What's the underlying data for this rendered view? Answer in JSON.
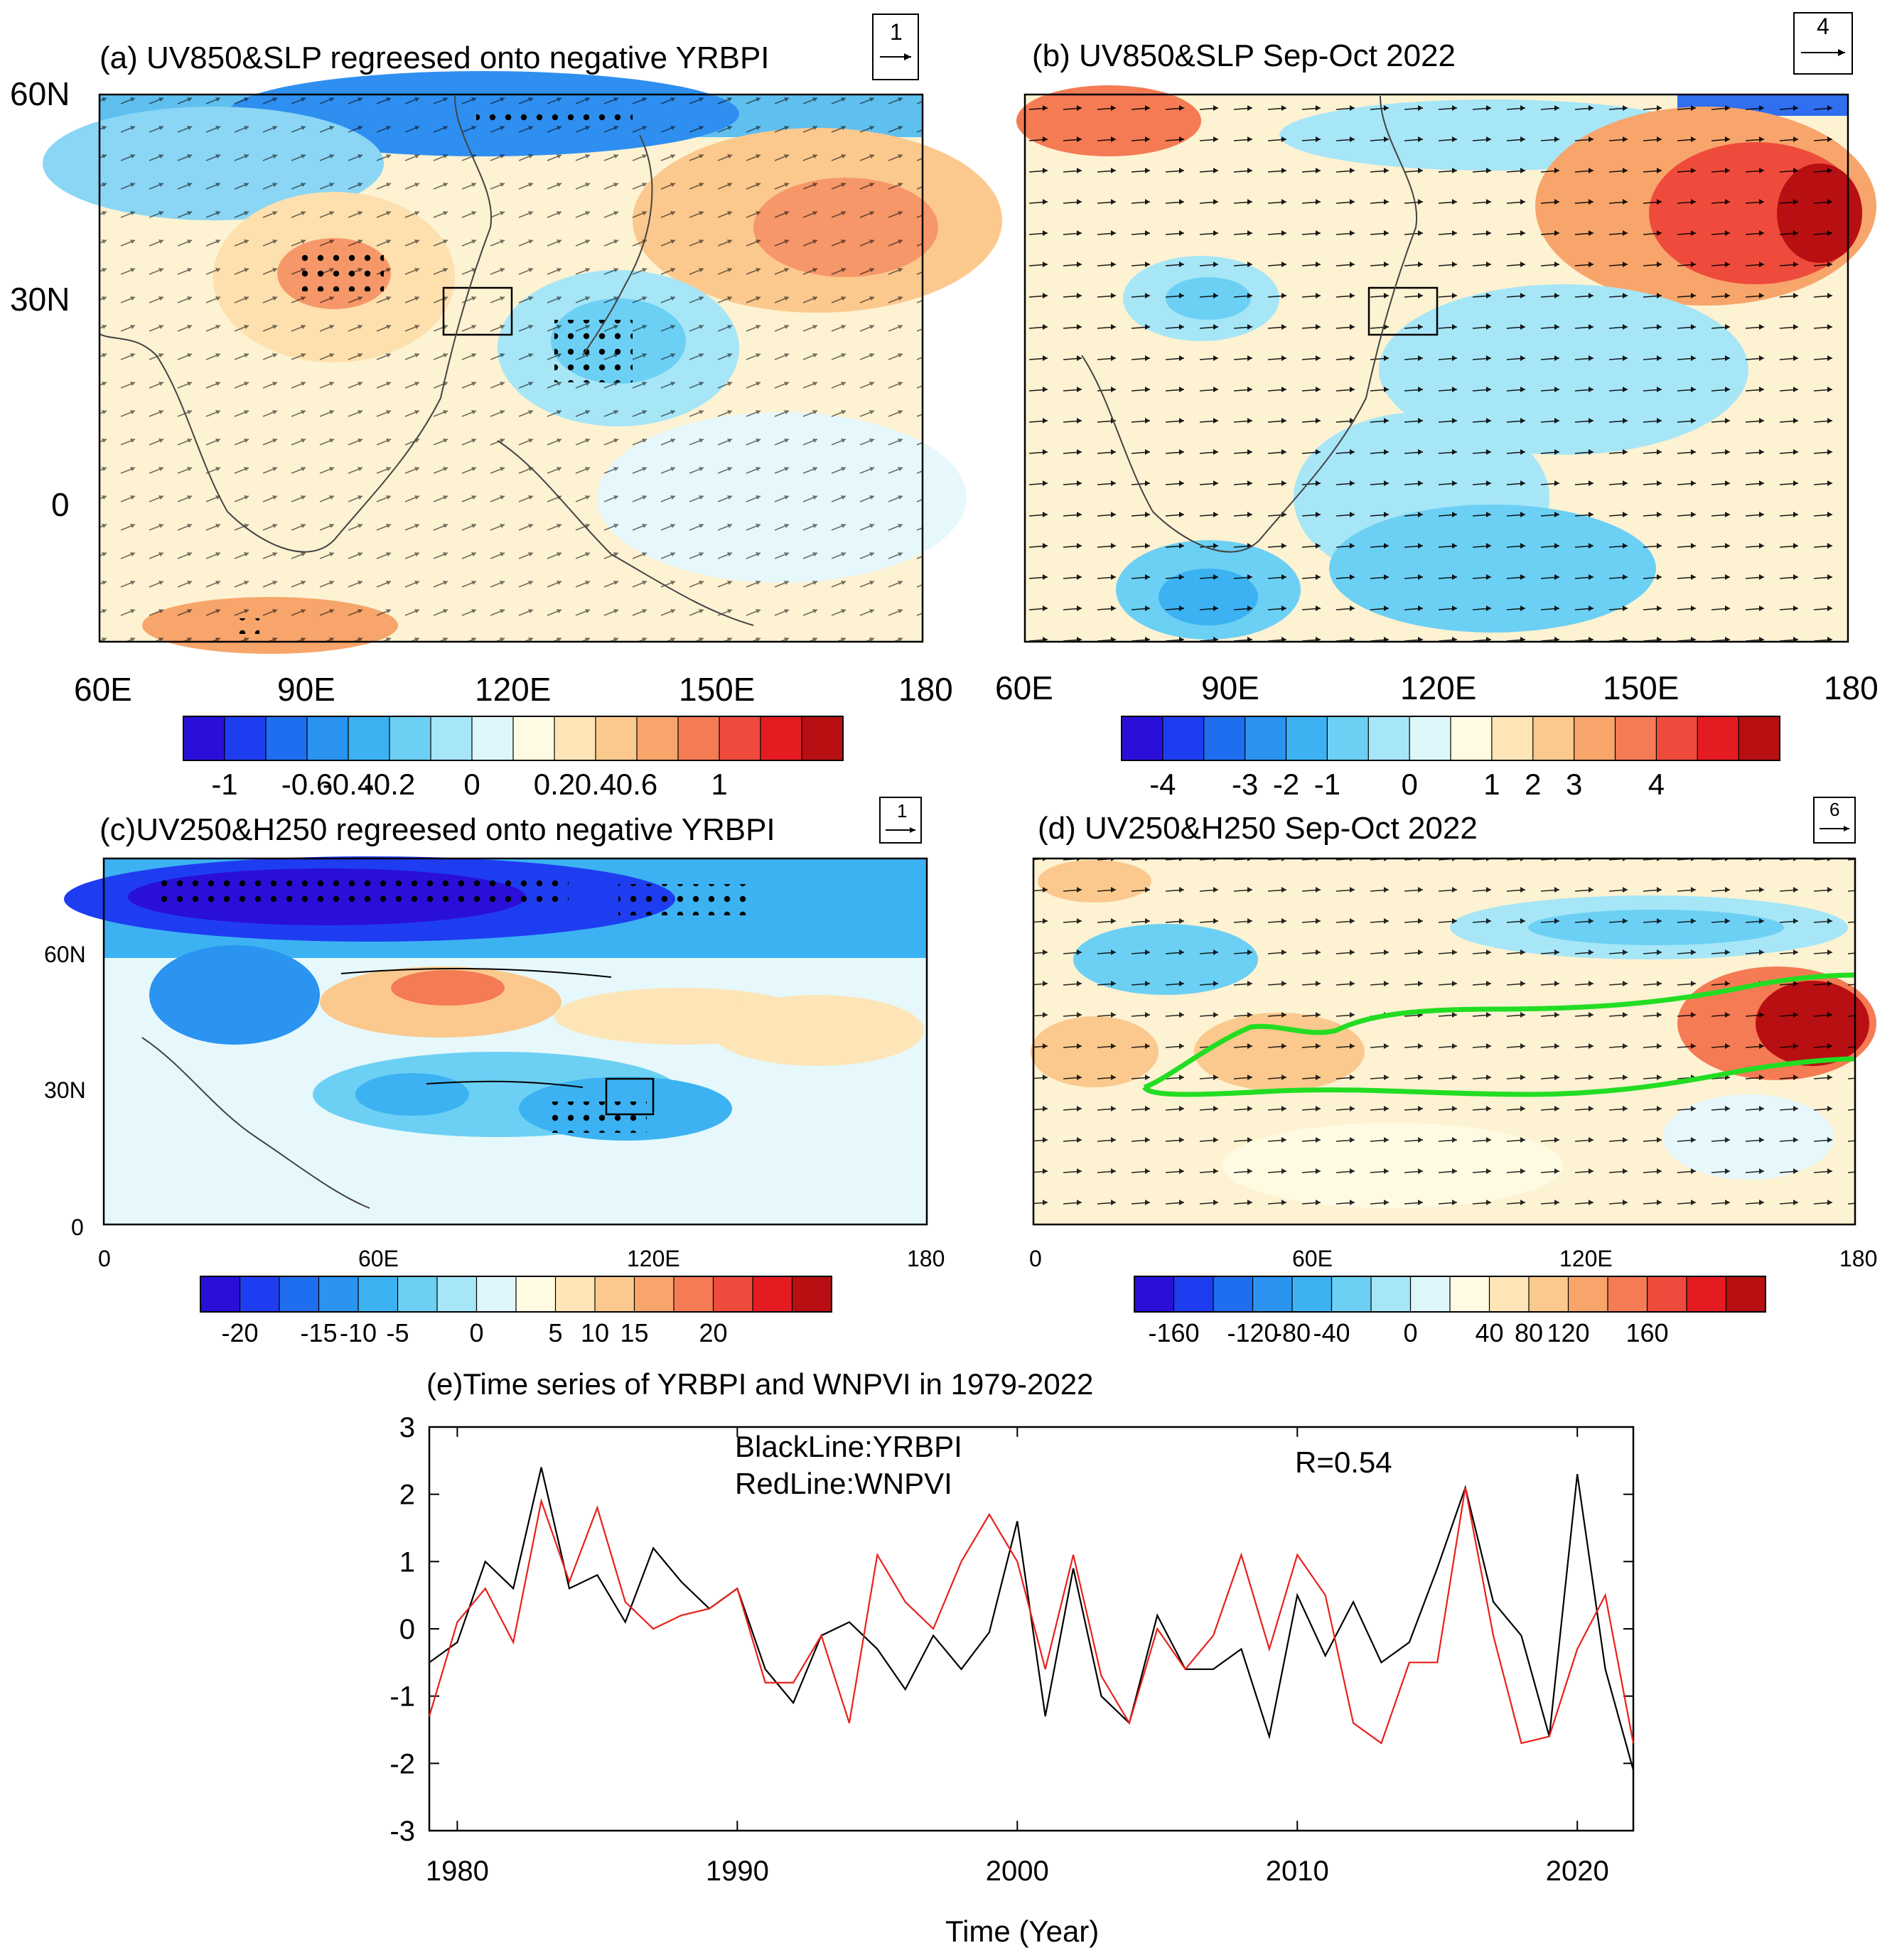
{
  "figure": {
    "panels": {
      "a": {
        "title": "(a) UV850&SLP regreesed onto negative YRBPI",
        "ref_vector": "1",
        "x_ticks": [
          "60E",
          "90E",
          "120E",
          "150E",
          "180"
        ],
        "y_ticks": [
          "60N",
          "30N",
          "0"
        ],
        "colorbar": [
          "-1",
          "-0.6",
          "-0.4",
          "-0.2",
          "0",
          "0.2",
          "0.4",
          "0.6",
          "1"
        ]
      },
      "b": {
        "title": "(b) UV850&SLP Sep-Oct 2022",
        "ref_vector": "4",
        "x_ticks": [
          "60E",
          "90E",
          "120E",
          "150E",
          "180"
        ],
        "colorbar": [
          "-4",
          "-3",
          "-2",
          "-1",
          "0",
          "1",
          "2",
          "3",
          "4"
        ]
      },
      "c": {
        "title": "(c)UV250&H250 regreesed onto negative YRBPI",
        "ref_vector": "1",
        "x_ticks": [
          "0",
          "60E",
          "120E",
          "180"
        ],
        "y_ticks": [
          "60N",
          "30N",
          "0"
        ],
        "colorbar": [
          "-20",
          "-15",
          "-10",
          "-5",
          "0",
          "5",
          "10",
          "15",
          "20"
        ]
      },
      "d": {
        "title": "(d) UV250&H250 Sep-Oct 2022",
        "ref_vector": "6",
        "x_ticks": [
          "0",
          "60E",
          "120E",
          "180"
        ],
        "colorbar": [
          "-160",
          "-120",
          "-80",
          "-40",
          "0",
          "40",
          "80",
          "120",
          "160"
        ]
      }
    },
    "colors": {
      "scale": [
        "#2a0fd8",
        "#1f3df0",
        "#1f6ef0",
        "#2a94f0",
        "#3cb2f2",
        "#6cd0f4",
        "#a6e6f7",
        "#ddf6fa",
        "#fffbe2",
        "#fde5b7",
        "#fbc98d",
        "#f7a56b",
        "#f47b54",
        "#ef4b3c",
        "#e41c22",
        "#b80f12"
      ],
      "black_line": "#000000",
      "red_line": "#e8201b",
      "jet_contour": "#22dd22",
      "dots": "#000000"
    }
  },
  "chart_data": {
    "type": "line",
    "title": "(e)Time series of YRBPI and WNPVI in 1979-2022",
    "xlabel": "Time (Year)",
    "ylabel": "",
    "xlim": [
      1979,
      2022
    ],
    "ylim": [
      -3,
      3
    ],
    "x_ticks": [
      1980,
      1990,
      2000,
      2010,
      2020
    ],
    "y_ticks": [
      3,
      2,
      1,
      0,
      -1,
      -2,
      -3
    ],
    "x": [
      1979,
      1980,
      1981,
      1982,
      1983,
      1984,
      1985,
      1986,
      1987,
      1988,
      1989,
      1990,
      1991,
      1992,
      1993,
      1994,
      1995,
      1996,
      1997,
      1998,
      1999,
      2000,
      2001,
      2002,
      2003,
      2004,
      2005,
      2006,
      2007,
      2008,
      2009,
      2010,
      2011,
      2012,
      2013,
      2014,
      2015,
      2016,
      2017,
      2018,
      2019,
      2020,
      2021,
      2022
    ],
    "legend": [
      "BlackLine:YRBPI",
      "RedLine:WNPVI"
    ],
    "annotation": "R=0.54",
    "series": [
      {
        "name": "YRBPI",
        "color": "#000000",
        "values": [
          -0.5,
          -0.2,
          1.0,
          0.6,
          2.4,
          0.6,
          0.8,
          0.1,
          1.2,
          0.7,
          0.3,
          0.6,
          -0.6,
          -1.1,
          -0.1,
          0.1,
          -0.3,
          -0.9,
          -0.1,
          -0.6,
          -0.05,
          1.6,
          -1.3,
          0.9,
          -1.0,
          -1.4,
          0.2,
          -0.6,
          -0.6,
          -0.3,
          -1.6,
          0.5,
          -0.4,
          0.4,
          -0.5,
          -0.2,
          0.9,
          2.1,
          0.4,
          -0.1,
          -1.6,
          2.3,
          -0.6,
          -2.1
        ]
      },
      {
        "name": "WNPVI",
        "color": "#e8201b",
        "values": [
          -1.3,
          0.1,
          0.6,
          -0.2,
          1.9,
          0.7,
          1.8,
          0.4,
          0.0,
          0.2,
          0.3,
          0.6,
          -0.8,
          -0.8,
          -0.1,
          -1.4,
          1.1,
          0.4,
          0.0,
          1.0,
          1.7,
          1.0,
          -0.6,
          1.1,
          -0.7,
          -1.4,
          0.0,
          -0.6,
          -0.1,
          1.1,
          -0.3,
          1.1,
          0.5,
          -1.4,
          -1.7,
          -0.5,
          -0.5,
          2.1,
          -0.1,
          -1.7,
          -1.6,
          -0.3,
          0.5,
          -1.7
        ]
      }
    ]
  }
}
